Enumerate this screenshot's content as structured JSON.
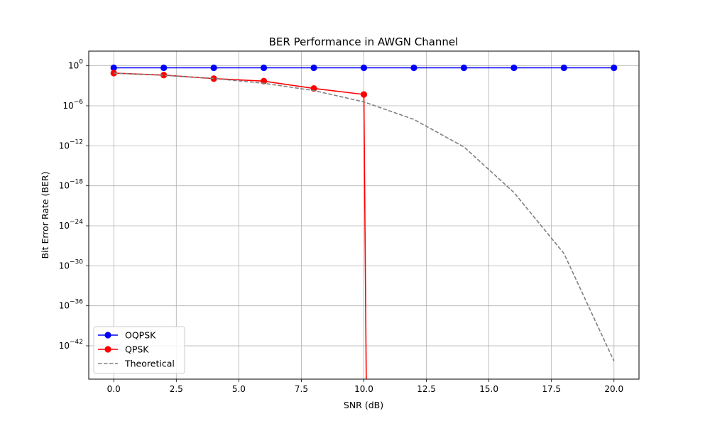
{
  "chart_data": {
    "type": "line",
    "title": "BER Performance in AWGN Channel",
    "xlabel": "SNR (dB)",
    "ylabel": "Bit Error Rate (BER)",
    "xlim": [
      -1,
      21
    ],
    "ylim_log10": [
      -47,
      2.2
    ],
    "y_scale": "log",
    "grid": true,
    "legend_position": "lower-left",
    "x_ticks": [
      0.0,
      2.5,
      5.0,
      7.5,
      10.0,
      12.5,
      15.0,
      17.5,
      20.0
    ],
    "x_tick_labels": [
      "0.0",
      "2.5",
      "5.0",
      "7.5",
      "10.0",
      "12.5",
      "15.0",
      "17.5",
      "20.0"
    ],
    "y_ticks_log10": [
      0,
      -6,
      -12,
      -18,
      -24,
      -30,
      -36,
      -42
    ],
    "y_tick_labels": [
      {
        "base": "10",
        "exp": "0"
      },
      {
        "base": "10",
        "exp": "−6"
      },
      {
        "base": "10",
        "exp": "−12"
      },
      {
        "base": "10",
        "exp": "−18"
      },
      {
        "base": "10",
        "exp": "−24"
      },
      {
        "base": "10",
        "exp": "−30"
      },
      {
        "base": "10",
        "exp": "−36"
      },
      {
        "base": "10",
        "exp": "−42"
      }
    ],
    "series": [
      {
        "name": "OQPSK",
        "color": "#0000ff",
        "style": "solid",
        "marker": "circle",
        "x": [
          0,
          2,
          4,
          6,
          8,
          10,
          12,
          14,
          16,
          18,
          20
        ],
        "y": [
          0.5,
          0.5,
          0.5,
          0.5,
          0.5,
          0.5,
          0.5,
          0.5,
          0.5,
          0.5,
          0.5
        ]
      },
      {
        "name": "QPSK",
        "color": "#ff0000",
        "style": "solid",
        "marker": "circle",
        "x": [
          0,
          2,
          4,
          6,
          8,
          10
        ],
        "y": [
          0.08,
          0.04,
          0.012,
          0.005,
          0.0004,
          5e-05
        ],
        "drop_to_zero_after_x": 10.1
      },
      {
        "name": "Theoretical",
        "color": "#808080",
        "style": "dashed",
        "marker": "none",
        "x": [
          0,
          2,
          4,
          6,
          8,
          10,
          12,
          14,
          16,
          18,
          20
        ],
        "y": [
          0.0786,
          0.0375,
          0.0125,
          0.00239,
          0.000191,
          3.87e-06,
          9e-09,
          6.8e-13,
          1e-19,
          7e-29,
          5e-45
        ]
      }
    ]
  }
}
